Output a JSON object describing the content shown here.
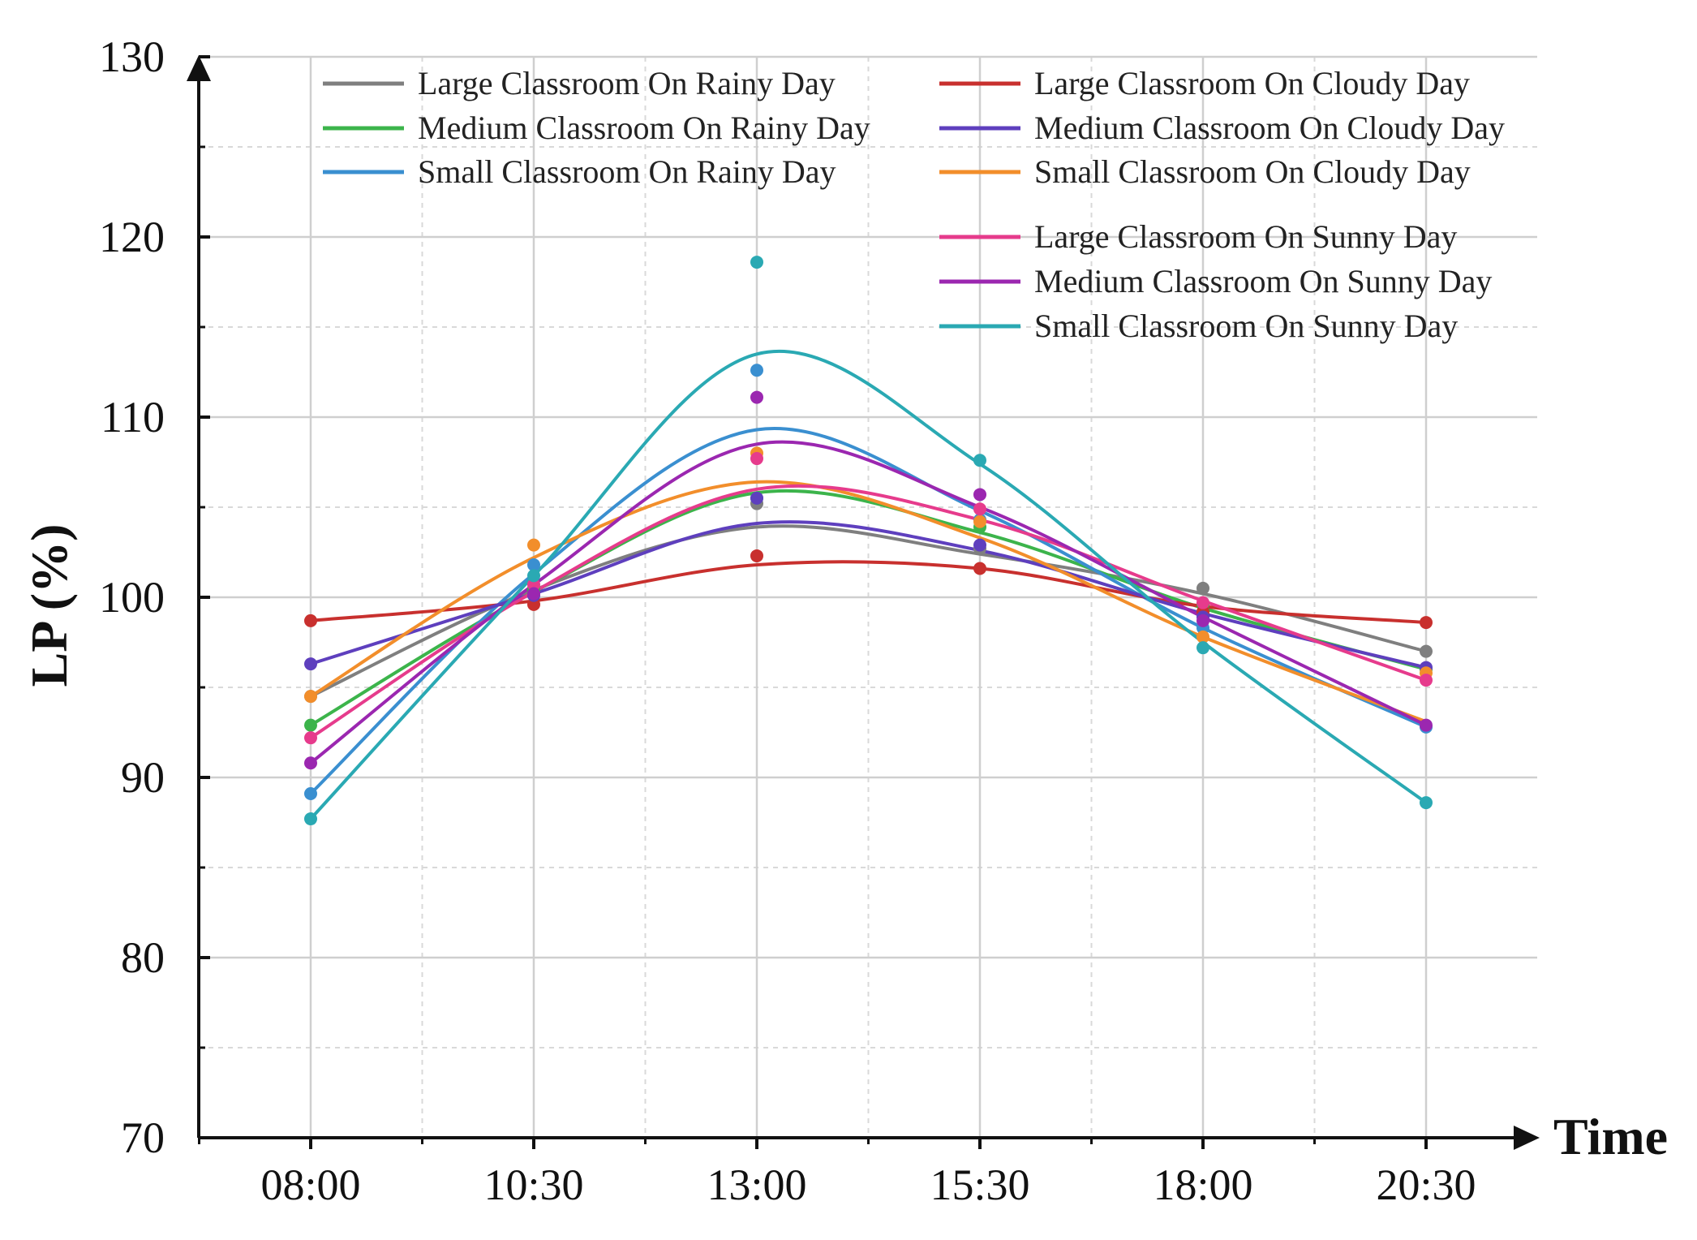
{
  "chart_data": {
    "type": "line",
    "title": "",
    "xlabel": "Time",
    "ylabel": "LP (%)",
    "ylim": [
      70,
      130
    ],
    "yticks": [
      70,
      80,
      90,
      100,
      110,
      120,
      130
    ],
    "categories": [
      "08:00",
      "10:30",
      "13:00",
      "15:30",
      "18:00",
      "20:30"
    ],
    "grid": true,
    "legend_position": "top",
    "series": [
      {
        "name": "Large Classroom On Rainy Day",
        "color": "#7f7f7f",
        "points": [
          94.5,
          100.5,
          105.2,
          102.7,
          100.5,
          97.0
        ],
        "curve": [
          94.5,
          100.4,
          103.9,
          102.4,
          100.2,
          97.0
        ]
      },
      {
        "name": "Medium Classroom On Rainy Day",
        "color": "#3cb44b",
        "points": [
          92.9,
          100.4,
          105.5,
          103.9,
          99.6,
          96.0
        ],
        "curve": [
          92.9,
          100.3,
          105.8,
          103.6,
          99.4,
          96.0
        ]
      },
      {
        "name": "Small Classroom On Rainy Day",
        "color": "#3a8fd0",
        "points": [
          89.1,
          101.8,
          112.6,
          104.3,
          98.3,
          92.8
        ],
        "curve": [
          89.1,
          101.3,
          109.3,
          104.8,
          98.3,
          92.8
        ]
      },
      {
        "name": "Large Classroom On Cloudy Day",
        "color": "#c8302e",
        "points": [
          98.7,
          99.6,
          102.3,
          101.6,
          99.2,
          98.6
        ],
        "curve": [
          98.7,
          99.8,
          101.8,
          101.6,
          99.5,
          98.6
        ]
      },
      {
        "name": "Medium Classroom On Cloudy Day",
        "color": "#5e3fbe",
        "points": [
          96.3,
          100.1,
          105.5,
          102.9,
          98.9,
          96.1
        ],
        "curve": [
          96.3,
          100.2,
          104.1,
          102.6,
          99.1,
          96.1
        ]
      },
      {
        "name": "Small Classroom On Cloudy Day",
        "color": "#f28e2b",
        "points": [
          94.5,
          102.9,
          108.0,
          104.2,
          97.8,
          95.8
        ],
        "curve": [
          94.5,
          102.2,
          106.4,
          103.3,
          97.8,
          93.1
        ]
      },
      {
        "name": "Large Classroom On Sunny Day",
        "color": "#e63b8c",
        "points": [
          92.2,
          100.7,
          107.7,
          104.9,
          99.7,
          95.4
        ],
        "curve": [
          92.2,
          100.3,
          106.0,
          104.3,
          99.8,
          95.4
        ]
      },
      {
        "name": "Medium Classroom On Sunny Day",
        "color": "#9b27b0",
        "points": [
          90.8,
          100.2,
          111.1,
          105.7,
          98.7,
          92.9
        ],
        "curve": [
          90.8,
          100.7,
          108.5,
          105.0,
          98.9,
          92.9
        ]
      },
      {
        "name": "Small Classroom On Sunny Day",
        "color": "#2aa9b3",
        "points": [
          87.7,
          101.2,
          118.6,
          107.6,
          97.2,
          88.6
        ],
        "curve": [
          87.7,
          101.2,
          113.5,
          107.4,
          97.5,
          88.6
        ]
      }
    ]
  }
}
